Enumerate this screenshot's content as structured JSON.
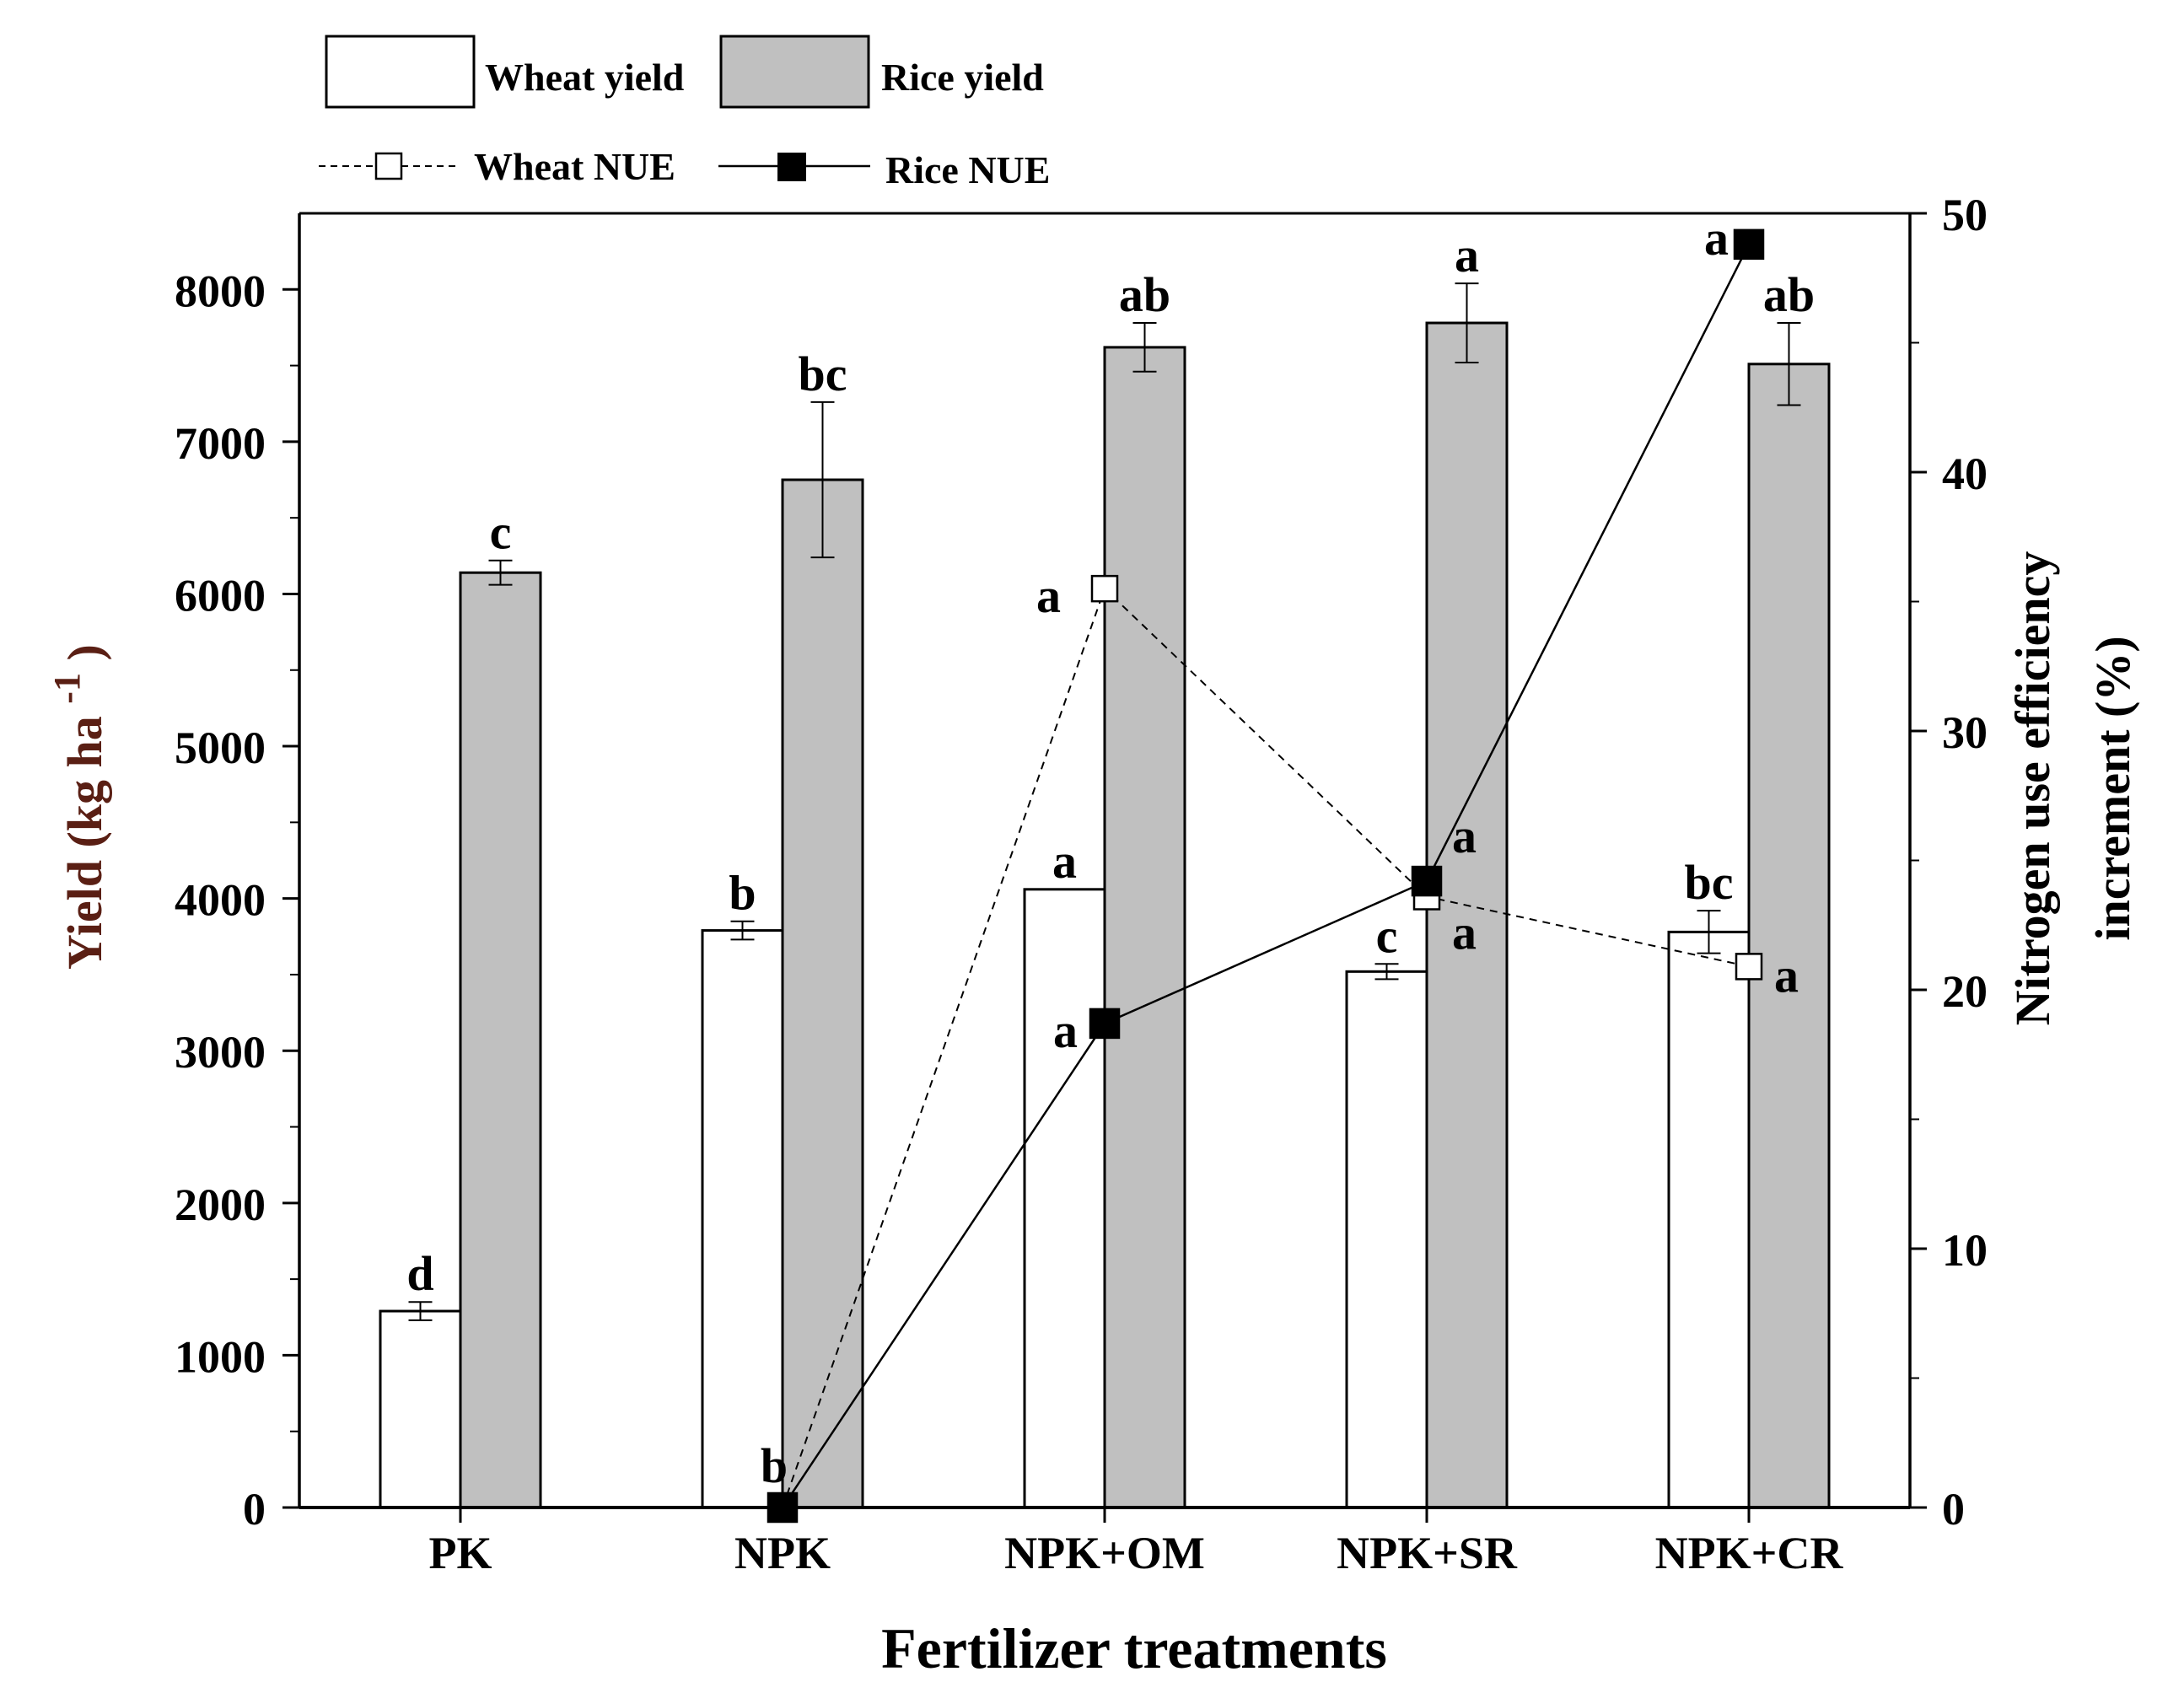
{
  "chart_data": {
    "type": "bar+line (dual axis)",
    "categories": [
      "PK",
      "NPK",
      "NPK+OM",
      "NPK+SR",
      "NPK+CR"
    ],
    "xlabel": "Fertilizer treatments",
    "ylabel_left": {
      "main": "Yield (kg ha",
      "sup": "-1",
      "close": ")"
    },
    "ylabel_right": [
      "Nitrogen use efficiency",
      "increment (%)"
    ],
    "ylim_left": [
      0,
      8500
    ],
    "ylim_right": [
      0,
      50
    ],
    "left_ticks": [
      0,
      1000,
      2000,
      3000,
      4000,
      5000,
      6000,
      7000,
      8000
    ],
    "right_ticks": [
      0,
      10,
      20,
      30,
      40,
      50
    ],
    "bar_series": [
      {
        "name": "Wheat yield",
        "color": "#ffffff",
        "values": [
          1290,
          3790,
          4060,
          3520,
          3780
        ],
        "errors": [
          60,
          60,
          0,
          50,
          140
        ],
        "letters": [
          "d",
          "b",
          "a",
          "c",
          "bc"
        ]
      },
      {
        "name": "Rice yield",
        "color": "#c0c0c0",
        "values": [
          6140,
          6750,
          7620,
          7780,
          7510
        ],
        "errors": [
          80,
          510,
          160,
          260,
          270
        ],
        "letters": [
          "c",
          "bc",
          "ab",
          "a",
          "ab"
        ]
      }
    ],
    "line_series": [
      {
        "name": "Wheat NUE",
        "style": "dashed",
        "marker": "open-square",
        "x_index": [
          1,
          2,
          3,
          4
        ],
        "values": [
          0,
          35.5,
          23.6,
          20.9
        ],
        "letters": [
          "",
          "a",
          "a",
          "a"
        ]
      },
      {
        "name": "Rice NUE",
        "style": "solid",
        "marker": "filled-square",
        "x_index": [
          1,
          2,
          3,
          4
        ],
        "values": [
          0,
          18.7,
          24.2,
          48.8
        ],
        "letters": [
          "b",
          "a",
          "a",
          "a"
        ]
      }
    ],
    "legend": {
      "position": "top-left, outside plot",
      "items": [
        "Wheat yield",
        "Rice yield",
        "Wheat NUE",
        "Rice NUE"
      ]
    }
  }
}
